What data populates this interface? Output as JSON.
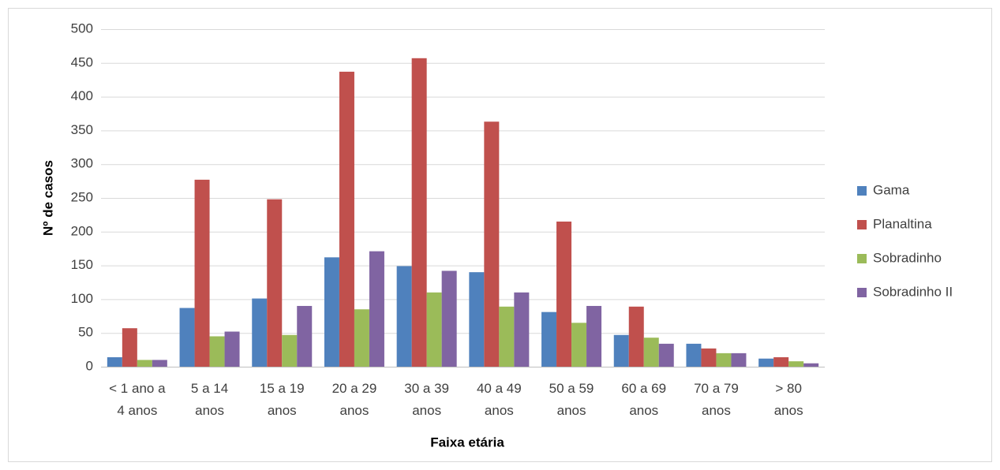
{
  "chart_data": {
    "type": "bar",
    "x_label": "Faixa etária",
    "y_label": "Nº de casos",
    "categories": [
      "< 1 ano a\n4 anos",
      "5 a 14\nanos",
      "15 a 19\nanos",
      "20 a 29\nanos",
      "30 a 39\nanos",
      "40 a 49\nanos",
      "50 a 59\nanos",
      "60 a 69\nanos",
      "70 a 79\nanos",
      "> 80\nanos"
    ],
    "series": [
      {
        "name": "Gama",
        "color": "#4f81bd",
        "values": [
          14,
          87,
          101,
          162,
          149,
          140,
          81,
          47,
          34,
          12
        ]
      },
      {
        "name": "Planaltina",
        "color": "#c0504d",
        "values": [
          57,
          277,
          248,
          437,
          457,
          363,
          215,
          89,
          27,
          14
        ]
      },
      {
        "name": "Sobradinho",
        "color": "#9bbb59",
        "values": [
          10,
          45,
          47,
          85,
          110,
          89,
          65,
          43,
          20,
          8
        ]
      },
      {
        "name": "Sobradinho II",
        "color": "#8064a2",
        "values": [
          10,
          52,
          90,
          171,
          142,
          110,
          90,
          34,
          20,
          5
        ]
      }
    ],
    "ylim": [
      0,
      500
    ],
    "yticks": [
      0,
      50,
      100,
      150,
      200,
      250,
      300,
      350,
      400,
      450,
      500
    ],
    "grid": true,
    "legend": "right"
  }
}
